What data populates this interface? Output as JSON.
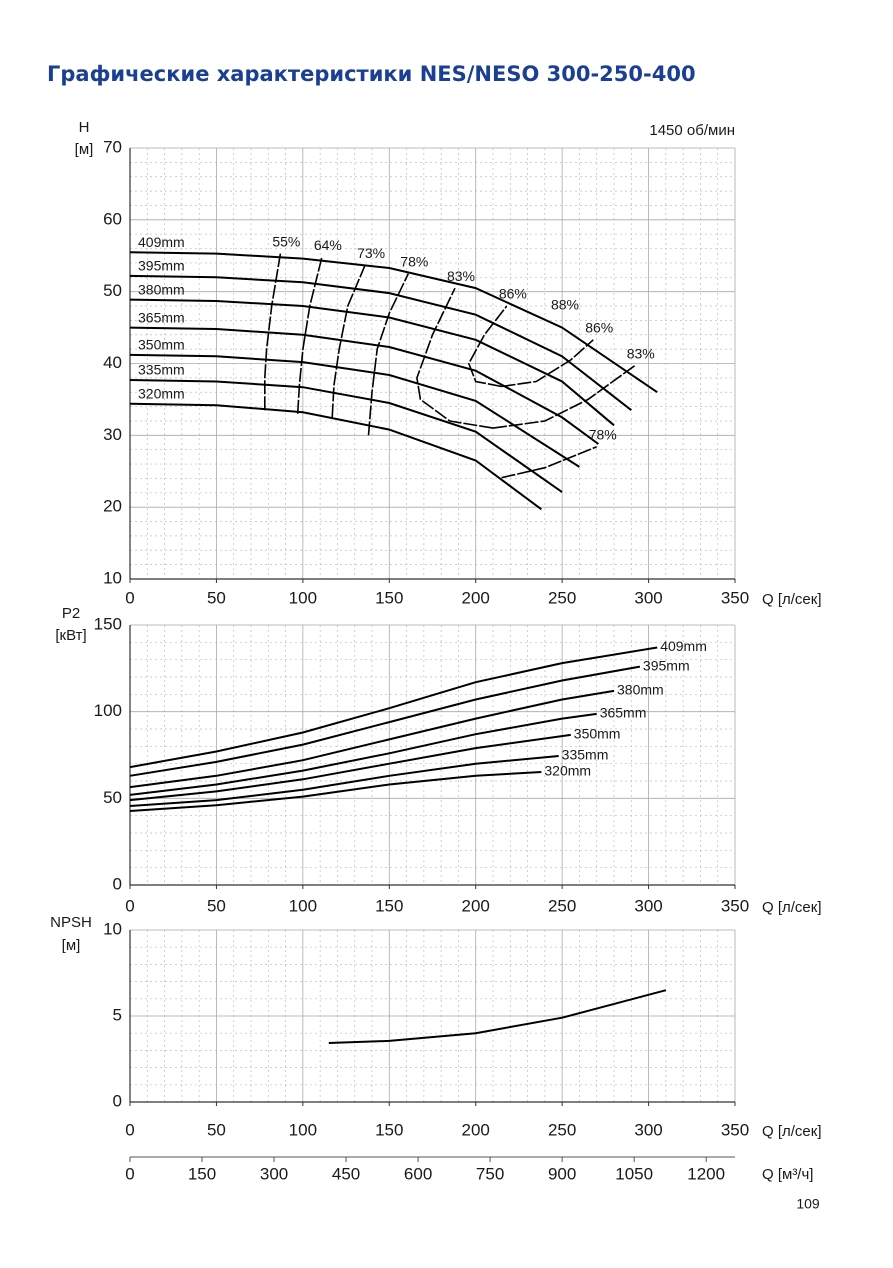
{
  "title": "Графические характеристики NES/NESO 300-250-400",
  "page_number": "109",
  "chart_data": [
    {
      "type": "line",
      "ylabel": [
        "H",
        "[м]"
      ],
      "xlabel": "Q [л/сек]",
      "annotation": "1450 об/мин",
      "xlim": [
        0,
        350
      ],
      "xticks": [
        0,
        50,
        100,
        150,
        200,
        250,
        300,
        350
      ],
      "ylim": [
        10,
        70
      ],
      "yticks": [
        10,
        20,
        30,
        40,
        50,
        60,
        70
      ],
      "grid": true,
      "color": "#000000",
      "series": [
        {
          "name": "409mm",
          "x": [
            0,
            50,
            100,
            150,
            200,
            250,
            305
          ],
          "values": [
            55.5,
            55.3,
            54.6,
            53.3,
            50.5,
            45,
            36
          ]
        },
        {
          "name": "395mm",
          "x": [
            0,
            50,
            100,
            150,
            200,
            250,
            290
          ],
          "values": [
            52.2,
            52,
            51.3,
            49.8,
            46.8,
            41,
            33.5
          ]
        },
        {
          "name": "380mm",
          "x": [
            0,
            50,
            100,
            150,
            200,
            250,
            280
          ],
          "values": [
            48.9,
            48.7,
            48,
            46.4,
            43.3,
            37.5,
            31.4
          ]
        },
        {
          "name": "365mm",
          "x": [
            0,
            50,
            100,
            150,
            200,
            250,
            271
          ],
          "values": [
            45,
            44.8,
            44,
            42.3,
            39,
            32.5,
            28.8
          ]
        },
        {
          "name": "350mm",
          "x": [
            0,
            50,
            100,
            150,
            200,
            260
          ],
          "values": [
            41.2,
            41,
            40.2,
            38.4,
            34.8,
            25.6
          ]
        },
        {
          "name": "335mm",
          "x": [
            0,
            50,
            100,
            150,
            200,
            250
          ],
          "values": [
            37.7,
            37.5,
            36.7,
            34.5,
            30.5,
            22.1
          ]
        },
        {
          "name": "320mm",
          "x": [
            0,
            50,
            100,
            150,
            200,
            238
          ],
          "values": [
            34.4,
            34.2,
            33.2,
            30.8,
            26.5,
            19.7
          ]
        }
      ],
      "efficiency_series": [
        {
          "name": "55%",
          "x": [
            78,
            78,
            79,
            82,
            87
          ],
          "values": [
            33.5,
            38,
            42,
            48,
            55.3
          ]
        },
        {
          "name": "64%",
          "x": [
            97,
            98,
            100,
            104,
            111
          ],
          "values": [
            33,
            37,
            42,
            48,
            54.8
          ]
        },
        {
          "name": "73%",
          "x": [
            117,
            118,
            121,
            126,
            136
          ],
          "values": [
            32.5,
            37,
            42,
            48,
            53.7
          ]
        },
        {
          "name": "78%",
          "x": [
            138,
            140,
            143,
            150,
            161
          ],
          "values": [
            30,
            36,
            42,
            47,
            52.5
          ]
        },
        {
          "name": "83%",
          "x": [
            210,
            185,
            168,
            166,
            175,
            188
          ],
          "values": [
            31,
            32,
            35,
            38,
            44,
            50.5
          ]
        },
        {
          "name": "86%",
          "x": [
            215,
            200,
            196,
            205,
            218
          ],
          "values": [
            36.8,
            37.5,
            40,
            44,
            48
          ]
        },
        {
          "name": "86%",
          "x": [
            215,
            235,
            255,
            268
          ],
          "values": [
            36.8,
            37.5,
            40.5,
            43.3
          ]
        },
        {
          "name": "83%",
          "x": [
            210,
            240,
            265,
            292
          ],
          "values": [
            31,
            32,
            35,
            39.7
          ]
        },
        {
          "name": "78%",
          "x": [
            215,
            240,
            270
          ],
          "values": [
            24.1,
            25.5,
            28.4
          ]
        }
      ],
      "efficiency_peak_label": "88%"
    },
    {
      "type": "line",
      "ylabel": [
        "P2",
        "[кВт]"
      ],
      "xlabel": "Q [л/сек]",
      "xlim": [
        0,
        350
      ],
      "xticks": [
        0,
        50,
        100,
        150,
        200,
        250,
        300,
        350
      ],
      "ylim": [
        0,
        150
      ],
      "yticks": [
        0,
        50,
        100,
        150
      ],
      "grid": true,
      "color": "#000000",
      "series": [
        {
          "name": "409mm",
          "x": [
            0,
            50,
            100,
            150,
            200,
            250,
            305
          ],
          "values": [
            68,
            77,
            88,
            102,
            117,
            128,
            137
          ]
        },
        {
          "name": "395mm",
          "x": [
            0,
            50,
            100,
            150,
            200,
            250,
            295
          ],
          "values": [
            63,
            71,
            81,
            94,
            107,
            118,
            126
          ]
        },
        {
          "name": "380mm",
          "x": [
            0,
            50,
            100,
            150,
            200,
            250,
            280
          ],
          "values": [
            56.5,
            63,
            72,
            84,
            96,
            107,
            112
          ]
        },
        {
          "name": "365mm",
          "x": [
            0,
            50,
            100,
            150,
            200,
            250,
            270
          ],
          "values": [
            52,
            58,
            66,
            76,
            87,
            96,
            98.7
          ]
        },
        {
          "name": "350mm",
          "x": [
            0,
            50,
            100,
            150,
            200,
            255
          ],
          "values": [
            49,
            54,
            61,
            70,
            79,
            86.6
          ]
        },
        {
          "name": "335mm",
          "x": [
            0,
            50,
            100,
            150,
            200,
            248
          ],
          "values": [
            45.6,
            49,
            55,
            63,
            70,
            74.4
          ]
        },
        {
          "name": "320mm",
          "x": [
            0,
            50,
            100,
            150,
            200,
            238
          ],
          "values": [
            42.7,
            46,
            51,
            58,
            63,
            65.2
          ]
        }
      ]
    },
    {
      "type": "line",
      "ylabel": [
        "NPSH",
        "[м]"
      ],
      "xlabel": "Q [л/сек]",
      "x2label": "Q [м³/ч]",
      "xlim": [
        0,
        350
      ],
      "xticks": [
        0,
        50,
        100,
        150,
        200,
        250,
        300,
        350
      ],
      "x2lim": [
        0,
        1260
      ],
      "x2ticks": [
        0,
        150,
        300,
        450,
        600,
        750,
        900,
        1050,
        1200
      ],
      "ylim": [
        0,
        10
      ],
      "yticks": [
        0,
        5,
        10
      ],
      "grid": true,
      "color": "#000000",
      "series": [
        {
          "x": [
            115,
            150,
            200,
            250,
            310
          ],
          "values": [
            3.43,
            3.55,
            4.0,
            4.9,
            6.5
          ]
        }
      ]
    }
  ]
}
